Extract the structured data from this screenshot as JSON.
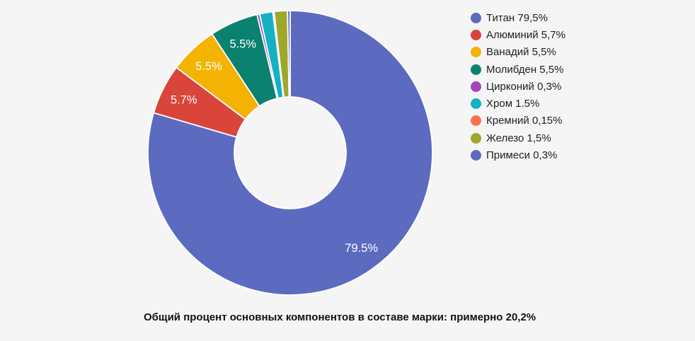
{
  "background_color": "#f5f5f5",
  "chart_data": {
    "type": "pie",
    "donut": true,
    "start_angle_deg": 0,
    "direction": "clockwise",
    "legend_position": "right",
    "grid": false,
    "title": "",
    "caption": "Общий процент основных компонентов в составе марки: примерно 20,2%",
    "slices": [
      {
        "id": "titanium",
        "name": "Титан",
        "value": 79.5,
        "legend_label": "Титан 79,5%",
        "slice_label": "79.5%",
        "color": "#5C6BC0"
      },
      {
        "id": "aluminum",
        "name": "Алюминий",
        "value": 5.7,
        "legend_label": "Алюминий 5,7%",
        "slice_label": "5.7%",
        "color": "#D9453A"
      },
      {
        "id": "vanadium",
        "name": "Ванадий",
        "value": 5.5,
        "legend_label": "Ванадий 5,5%",
        "slice_label": "5.5%",
        "color": "#F3B300"
      },
      {
        "id": "molybdenum",
        "name": "Молибден",
        "value": 5.5,
        "legend_label": "Молибден 5,5%",
        "slice_label": "5.5%",
        "color": "#0B8170"
      },
      {
        "id": "zirconium",
        "name": "Цирконий",
        "value": 0.3,
        "legend_label": "Цирконий 0,3%",
        "slice_label": null,
        "color": "#A344BC"
      },
      {
        "id": "chromium",
        "name": "Хром",
        "value": 1.5,
        "legend_label": "Хром 1.5%",
        "slice_label": null,
        "color": "#14B1C3"
      },
      {
        "id": "silicon",
        "name": "Кремний",
        "value": 0.15,
        "legend_label": "Кремний 0,15%",
        "slice_label": null,
        "color": "#F9724E"
      },
      {
        "id": "iron",
        "name": "Железо",
        "value": 1.5,
        "legend_label": "Железо 1,5%",
        "slice_label": null,
        "color": "#A0A62B"
      },
      {
        "id": "impurities",
        "name": "Примеси",
        "value": 0.3,
        "legend_label": "Примеси 0,3%",
        "slice_label": null,
        "color": "#5C6BC0"
      }
    ]
  }
}
